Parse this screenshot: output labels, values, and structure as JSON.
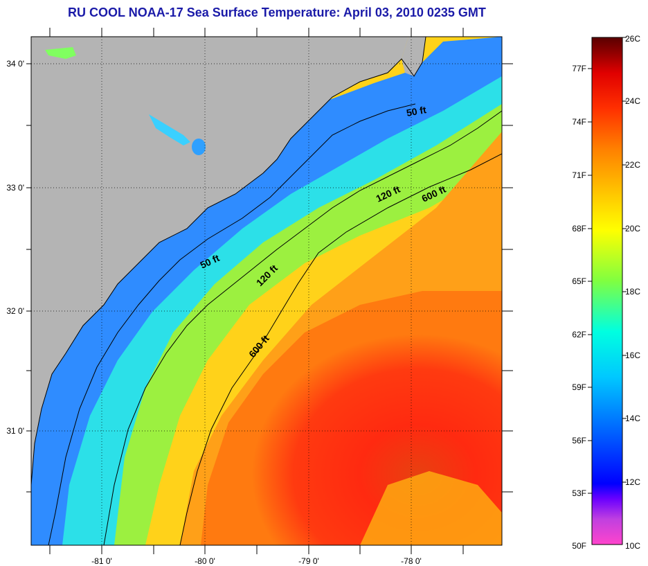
{
  "title": "RU COOL  NOAA-17  Sea Surface Temperature:  April 03, 2010 0235 GMT",
  "map": {
    "lat_ticks": [
      "34 0'",
      "33 0'",
      "32 0'",
      "31 0'"
    ],
    "lon_ticks": [
      "-81 0'",
      "-80 0'",
      "-79 0'",
      "-78 0'"
    ],
    "contour_labels": {
      "c50_north": "50 ft",
      "c50_south": "50 ft",
      "c120_north": "120 ft",
      "c120_south": "120 ft",
      "c600_north": "600 ft",
      "c600_south": "600 ft"
    },
    "colors": {
      "land": "#b4b4b4",
      "warm_core": "#ff2a10",
      "coastal_cool": "#2f8cff"
    }
  },
  "colorbar": {
    "fahrenheit_labels": [
      "77F",
      "74F",
      "71F",
      "68F",
      "65F",
      "62F",
      "59F",
      "56F",
      "53F",
      "50F"
    ],
    "celsius_labels": [
      "26C",
      "24C",
      "22C",
      "20C",
      "18C",
      "16C",
      "14C",
      "12C",
      "10C"
    ],
    "colors": [
      "#ff44cc",
      "#c040e0",
      "#6a00ff",
      "#0000ff",
      "#0060ff",
      "#00c8ff",
      "#00ffe0",
      "#80ff40",
      "#ffff00",
      "#ffc000",
      "#ff8000",
      "#ff3000",
      "#e00000",
      "#900000",
      "#5a0000"
    ]
  }
}
